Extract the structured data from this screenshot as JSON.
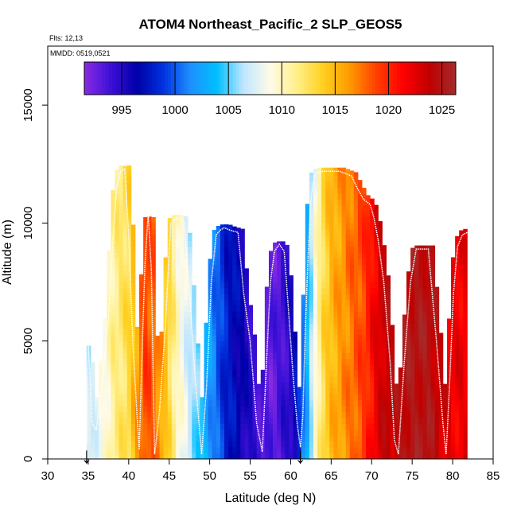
{
  "chart_data": {
    "type": "heatmap",
    "title": "ATOM4 Northeast_Pacific_2 SLP_GEOS5",
    "flights_label": "Flts: 12,13",
    "mmdd_label": "MMDD: 0519,0521",
    "xlabel": "Latitude (deg N)",
    "ylabel": "Altitude (m)",
    "xlim": [
      30,
      85
    ],
    "ylim": [
      0,
      17500
    ],
    "x_ticks": [
      30,
      35,
      40,
      45,
      50,
      55,
      60,
      65,
      70,
      75,
      80,
      85
    ],
    "y_ticks": [
      0,
      5000,
      10000,
      15000
    ],
    "colorbar": {
      "range": [
        991.5,
        1026.3
      ],
      "tick_values": [
        995,
        1000,
        1005,
        1010,
        1015,
        1020,
        1025
      ],
      "tick_labels": [
        "995",
        "1000",
        "1005",
        "1010",
        "1015",
        "1020",
        "1025"
      ],
      "colors": [
        "#8a2be2",
        "#3c10d8",
        "#0000a8",
        "#0033e0",
        "#1e90ff",
        "#00bfff",
        "#bfe6ff",
        "#fffbe8",
        "#fff08a",
        "#ffd020",
        "#ff9a00",
        "#ff4000",
        "#ff0000",
        "#c00000",
        "#a52a2a"
      ]
    },
    "slp_profile": {
      "latitude": [
        35,
        37,
        38,
        39,
        40,
        41,
        42,
        43,
        44,
        45,
        46,
        47,
        48,
        49,
        50,
        51,
        52,
        53,
        54,
        55,
        56,
        57,
        58,
        59,
        60,
        61,
        62,
        63,
        64,
        65,
        66,
        67,
        68,
        69,
        70,
        71,
        72,
        73,
        74,
        75,
        76,
        77,
        78,
        79,
        80,
        81,
        82
      ],
      "slp": [
        1007,
        1009,
        1011,
        1012,
        1013,
        1016,
        1019,
        1018,
        1016,
        1013,
        1010,
        1008,
        1006,
        1004,
        1002,
        1000,
        998,
        997,
        996,
        995,
        994,
        993,
        993,
        994,
        995,
        998,
        1003,
        1009,
        1013,
        1015,
        1016,
        1017,
        1018,
        1019,
        1021,
        1023,
        1024,
        1024,
        1025,
        1025,
        1025,
        1025,
        1024,
        1023,
        1022,
        1022,
        1022
      ]
    },
    "flight_track": {
      "latitude": [
        34.8,
        35.0,
        35.5,
        36.0,
        36.8,
        37.5,
        38.0,
        38.5,
        39.0,
        39.5,
        40.0,
        40.5,
        41.0,
        41.3,
        41.6,
        42.0,
        42.4,
        42.8,
        43.2,
        43.8,
        44.5,
        45.2,
        46.0,
        46.8,
        47.5,
        48.2,
        49.0,
        49.6,
        50.2,
        50.8,
        51.3,
        51.8,
        52.5,
        53.5,
        54.2,
        55.0,
        55.8,
        56.5,
        57.0,
        57.5,
        58.0,
        58.6,
        59.2,
        59.8,
        60.3,
        60.8,
        61.2,
        61.5,
        61.8,
        62.2,
        62.5,
        63.0,
        64.0,
        66.0,
        67.5,
        68.2,
        69.0,
        69.8,
        70.3,
        70.8,
        71.5,
        72.3,
        72.8,
        73.3,
        74.0,
        74.8,
        75.5,
        76.0,
        77.0,
        78.0,
        78.8,
        79.2,
        79.6,
        80.1,
        80.6,
        81.2,
        81.8
      ],
      "altitude": [
        600,
        5000,
        1500,
        1200,
        3500,
        6000,
        9000,
        11500,
        12200,
        12300,
        9500,
        5000,
        2000,
        400,
        4000,
        8200,
        10400,
        8000,
        200,
        2000,
        5500,
        10000,
        10200,
        10100,
        7000,
        3500,
        200,
        3000,
        7500,
        9500,
        9700,
        9800,
        9700,
        9600,
        7000,
        5000,
        1500,
        300,
        4000,
        7500,
        8800,
        9100,
        8800,
        6000,
        3500,
        1500,
        500,
        1800,
        5500,
        9000,
        11000,
        12100,
        12200,
        12200,
        12000,
        11500,
        11000,
        10800,
        10200,
        9300,
        7500,
        4000,
        800,
        200,
        4000,
        7500,
        8900,
        8900,
        8900,
        5000,
        1500,
        200,
        3000,
        7000,
        9000,
        9500,
        9600
      ],
      "labels": [
        "↓",
        "↓"
      ],
      "marker_latitudes": [
        34.8,
        61.2
      ]
    }
  }
}
